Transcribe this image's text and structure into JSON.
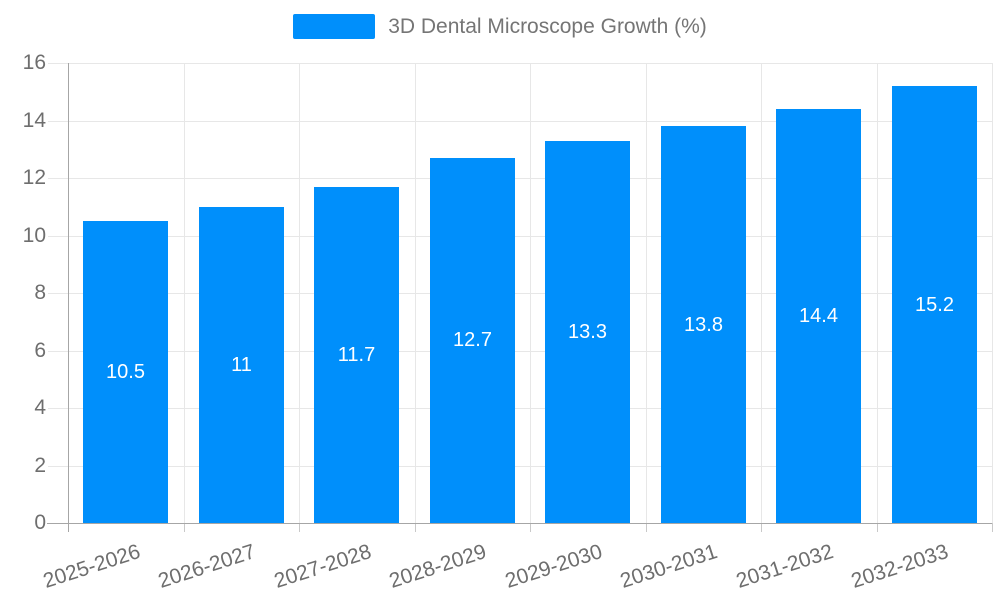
{
  "legend": {
    "label": "3D Dental Microscope Growth (%)",
    "color": "#008FFB"
  },
  "chart_data": {
    "type": "bar",
    "title": "",
    "xlabel": "",
    "ylabel": "",
    "categories": [
      "2025-2026",
      "2026-2027",
      "2027-2028",
      "2028-2029",
      "2029-2030",
      "2030-2031",
      "2031-2032",
      "2032-2033"
    ],
    "series": [
      {
        "name": "3D Dental Microscope Growth (%)",
        "values": [
          10.5,
          11,
          11.7,
          12.7,
          13.3,
          13.8,
          14.4,
          15.2
        ]
      }
    ],
    "ylim": [
      0,
      16
    ],
    "yticks": [
      0,
      2,
      4,
      6,
      8,
      10,
      12,
      14,
      16
    ],
    "grid": true,
    "legend_position": "top",
    "x_label_rotation_deg": -18,
    "bar_color": "#008FFB",
    "bar_label_color": "#ffffff",
    "axis_label_color": "#6e6e6e",
    "grid_color": "#e7e7e7",
    "axis_line_color": "#a6a6a6",
    "tick_color": "#c9c9c9"
  }
}
